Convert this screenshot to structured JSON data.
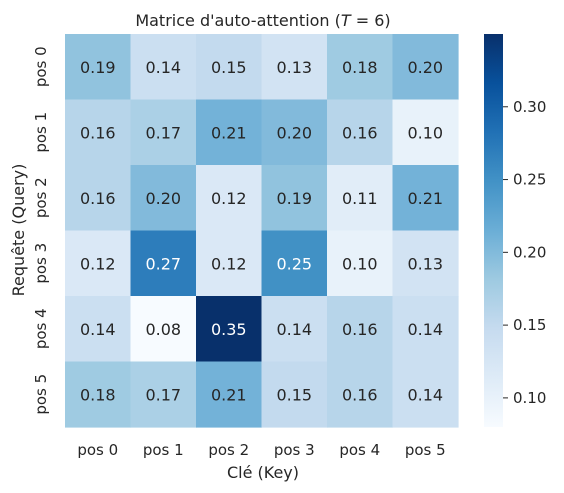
{
  "chart_data": {
    "type": "heatmap",
    "title": "Matrice d'auto-attention (",
    "title_math_var": "T",
    "title_math_rest": " = 6)",
    "xlabel": "Clé (Key)",
    "ylabel": "Requête (Query)",
    "x_categories": [
      "pos 0",
      "pos 1",
      "pos 2",
      "pos 3",
      "pos 4",
      "pos 5"
    ],
    "y_categories": [
      "pos 0",
      "pos 1",
      "pos 2",
      "pos 3",
      "pos 4",
      "pos 5"
    ],
    "values": [
      [
        0.19,
        0.14,
        0.15,
        0.13,
        0.18,
        0.2
      ],
      [
        0.16,
        0.17,
        0.21,
        0.2,
        0.16,
        0.1
      ],
      [
        0.16,
        0.2,
        0.12,
        0.19,
        0.11,
        0.21
      ],
      [
        0.12,
        0.27,
        0.12,
        0.25,
        0.1,
        0.13
      ],
      [
        0.14,
        0.08,
        0.35,
        0.14,
        0.16,
        0.14
      ],
      [
        0.18,
        0.17,
        0.21,
        0.15,
        0.16,
        0.14
      ]
    ],
    "value_labels": [
      [
        "0.19",
        "0.14",
        "0.15",
        "0.13",
        "0.18",
        "0.20"
      ],
      [
        "0.16",
        "0.17",
        "0.21",
        "0.20",
        "0.16",
        "0.10"
      ],
      [
        "0.16",
        "0.20",
        "0.12",
        "0.19",
        "0.11",
        "0.21"
      ],
      [
        "0.12",
        "0.27",
        "0.12",
        "0.25",
        "0.10",
        "0.13"
      ],
      [
        "0.14",
        "0.08",
        "0.35",
        "0.14",
        "0.16",
        "0.14"
      ],
      [
        "0.18",
        "0.17",
        "0.21",
        "0.15",
        "0.16",
        "0.14"
      ]
    ],
    "colormap": "Blues",
    "colorbar_range": [
      0.08,
      0.35
    ],
    "colorbar_ticks": [
      0.1,
      0.15,
      0.2,
      0.25,
      0.3
    ],
    "colorbar_tick_labels": [
      "0.10",
      "0.15",
      "0.20",
      "0.25",
      "0.30"
    ],
    "grid": false,
    "colors": {
      "cmap_stops": [
        "#f7fbff",
        "#deebf7",
        "#c6dbef",
        "#9ecae1",
        "#6baed6",
        "#4292c6",
        "#2171b5",
        "#08519c",
        "#08306b"
      ],
      "text_dark": "#262626",
      "text_light": "#ffffff"
    }
  }
}
